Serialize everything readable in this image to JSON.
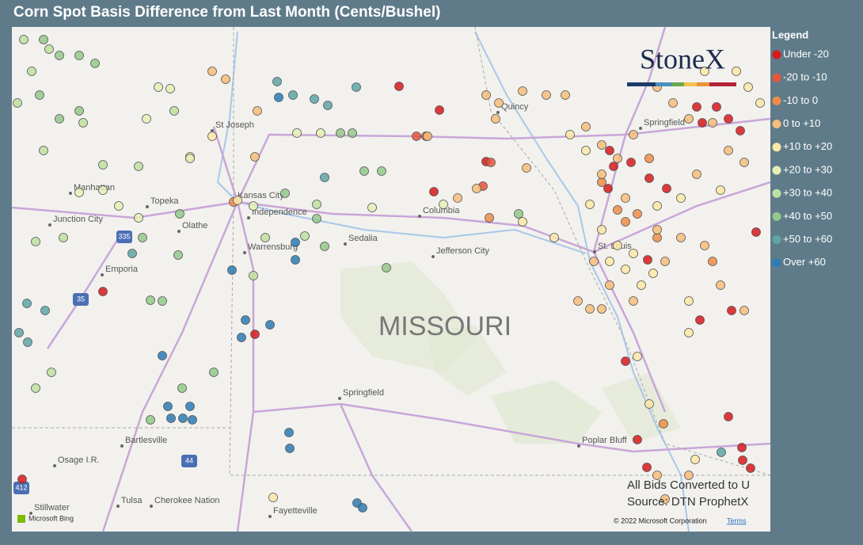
{
  "header": {
    "title": "Corn Spot Basis Difference from Last Month (Cents/Bushel)"
  },
  "logo": "StoneX",
  "map": {
    "state_label": "MISSOURI",
    "places": [
      {
        "label": "St Joseph"
      },
      {
        "label": "Manhattan"
      },
      {
        "label": "Topeka"
      },
      {
        "label": "Junction City"
      },
      {
        "label": "Kansas City"
      },
      {
        "label": "Independence"
      },
      {
        "label": "Olathe"
      },
      {
        "label": "Emporia"
      },
      {
        "label": "Warrensburg"
      },
      {
        "label": "Sedalia"
      },
      {
        "label": "Columbia"
      },
      {
        "label": "Jefferson City"
      },
      {
        "label": "St. Louis"
      },
      {
        "label": "Springfield"
      },
      {
        "label": "Quincy"
      },
      {
        "label": "Springfield"
      },
      {
        "label": "Bartlesville"
      },
      {
        "label": "Osage I.R."
      },
      {
        "label": "Poplar Bluff"
      },
      {
        "label": "Stillwater"
      },
      {
        "label": "Tulsa"
      },
      {
        "label": "Cherokee Nation"
      },
      {
        "label": "Fayetteville"
      }
    ],
    "shields": [
      "335",
      "35",
      "44",
      "412"
    ],
    "attribution": "Microsoft Bing",
    "copyright": "© 2022 Microsoft Corporation",
    "terms": "Terms"
  },
  "notes": [
    "All Bids Converted to U",
    "Source: DTN ProphetX"
  ],
  "legend": {
    "title": "Legend",
    "items": [
      {
        "label": "Under -20",
        "color": "#d7191c"
      },
      {
        "label": "-20 to -10",
        "color": "#e8553a"
      },
      {
        "label": "-10 to 0",
        "color": "#f08c45"
      },
      {
        "label": "0 to +10",
        "color": "#f7bd7a"
      },
      {
        "label": "+10 to +20",
        "color": "#fbe8a6"
      },
      {
        "label": "+20 to +30",
        "color": "#e6f0b6"
      },
      {
        "label": "+30 to +40",
        "color": "#bfe0a0"
      },
      {
        "label": "+40 to +50",
        "color": "#94c98a"
      },
      {
        "label": "+50 to +60",
        "color": "#5ea6a8"
      },
      {
        "label": "Over +60",
        "color": "#2c7bb6"
      }
    ]
  }
}
